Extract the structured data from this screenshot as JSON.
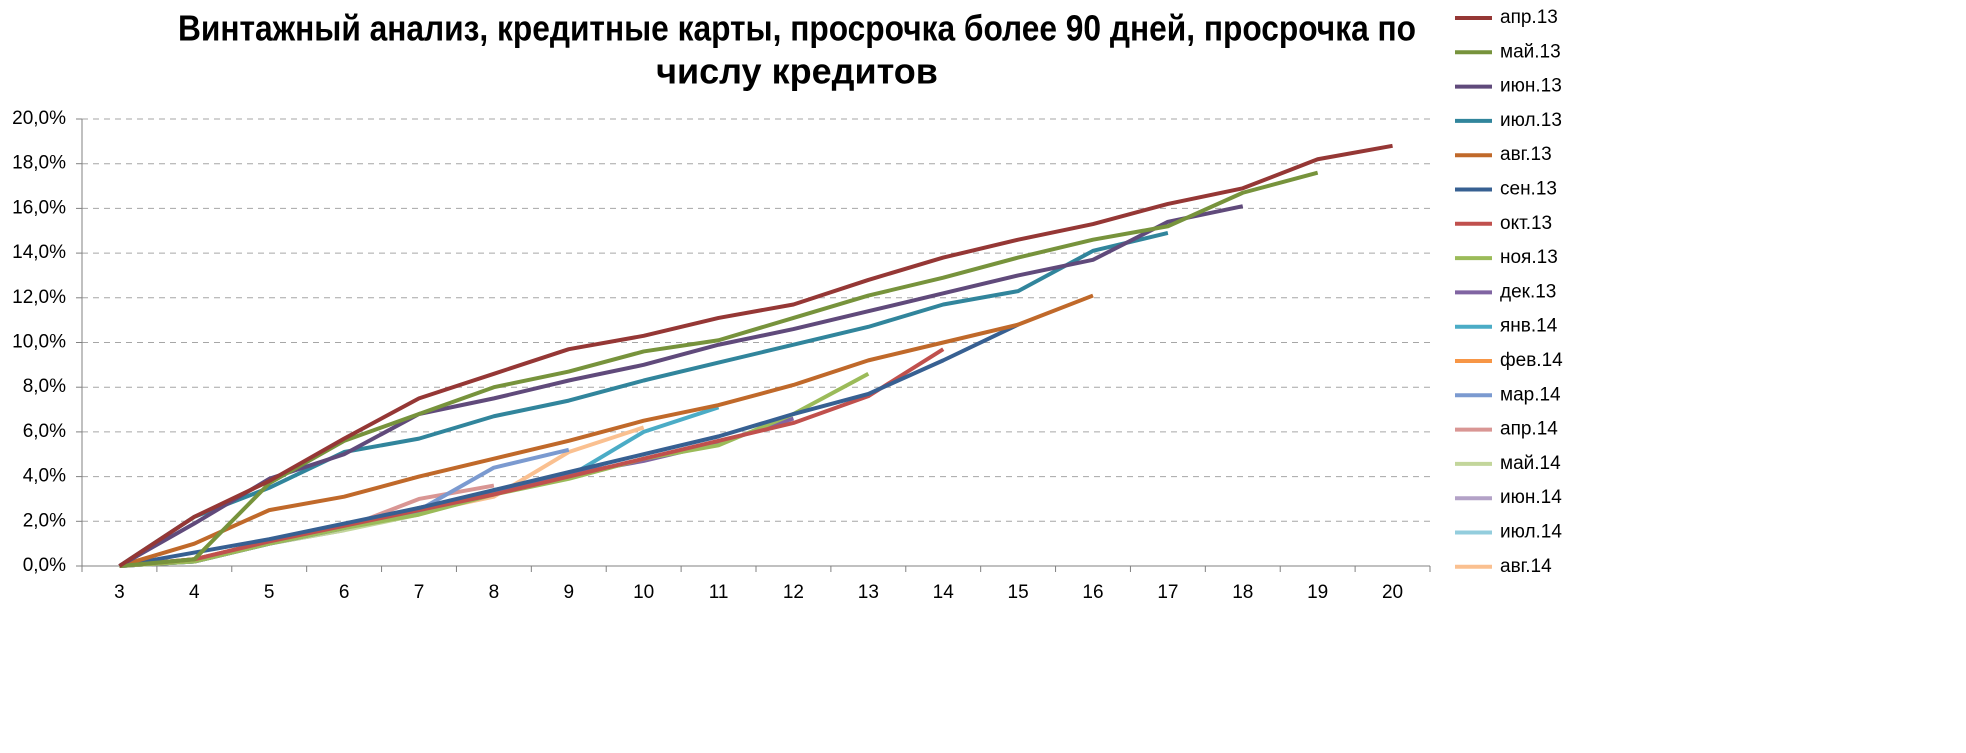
{
  "chart_data": {
    "type": "line",
    "title": [
      "Винтажный анализ, кредитные карты, просрочка более 90 дней, просрочка по",
      "числу кредитов"
    ],
    "categories": [
      "3",
      "4",
      "5",
      "6",
      "7",
      "8",
      "9",
      "10",
      "11",
      "12",
      "13",
      "14",
      "15",
      "16",
      "17",
      "18",
      "19",
      "20"
    ],
    "ylim": [
      0,
      20
    ],
    "yticks": [
      {
        "value": 0,
        "label": "0,0%"
      },
      {
        "value": 2,
        "label": "2,0%"
      },
      {
        "value": 4,
        "label": "4,0%"
      },
      {
        "value": 6,
        "label": "6,0%"
      },
      {
        "value": 8,
        "label": "8,0%"
      },
      {
        "value": 10,
        "label": "10,0%"
      },
      {
        "value": 12,
        "label": "12,0%"
      },
      {
        "value": 14,
        "label": "14,0%"
      },
      {
        "value": 16,
        "label": "16,0%"
      },
      {
        "value": 18,
        "label": "18,0%"
      },
      {
        "value": 20,
        "label": "20,0%"
      }
    ],
    "grid": true,
    "legend": "right",
    "series": [
      {
        "name": "апр.13",
        "color": "#953735",
        "values": [
          0,
          2.2,
          3.8,
          5.7,
          7.5,
          8.6,
          9.7,
          10.3,
          11.1,
          11.7,
          12.8,
          13.8,
          14.6,
          15.3,
          16.2,
          16.9,
          18.2,
          18.8
        ]
      },
      {
        "name": "май.13",
        "color": "#77933c",
        "values": [
          0,
          0.3,
          3.7,
          5.6,
          6.8,
          8.0,
          8.7,
          9.6,
          10.1,
          11.1,
          12.1,
          12.9,
          13.8,
          14.6,
          15.2,
          16.7,
          17.6,
          null
        ]
      },
      {
        "name": "июн.13",
        "color": "#604a7b",
        "values": [
          0,
          1.9,
          3.9,
          5.0,
          6.8,
          7.5,
          8.3,
          9.0,
          9.9,
          10.6,
          11.4,
          12.2,
          13.0,
          13.7,
          15.4,
          16.1,
          null,
          null
        ]
      },
      {
        "name": "июл.13",
        "color": "#31859c",
        "values": [
          0,
          2.2,
          3.5,
          5.1,
          5.7,
          6.7,
          7.4,
          8.3,
          9.1,
          9.9,
          10.7,
          11.7,
          12.3,
          14.1,
          14.9,
          null,
          null,
          null
        ]
      },
      {
        "name": "авг.13",
        "color": "#c0692a",
        "values": [
          0,
          1.0,
          2.5,
          3.1,
          4.0,
          4.8,
          5.6,
          6.5,
          7.2,
          8.1,
          9.2,
          10.0,
          10.8,
          12.1,
          null,
          null,
          null,
          null
        ]
      },
      {
        "name": "сен.13",
        "color": "#376092",
        "values": [
          0,
          0.6,
          1.2,
          1.9,
          2.6,
          3.4,
          4.2,
          5.0,
          5.8,
          6.8,
          7.7,
          9.2,
          10.8,
          null,
          null,
          null,
          null,
          null
        ]
      },
      {
        "name": "окт.13",
        "color": "#c0504d",
        "values": [
          0,
          0.3,
          1.1,
          1.8,
          2.5,
          3.2,
          4.0,
          4.8,
          5.6,
          6.4,
          7.6,
          9.7,
          null,
          null,
          null,
          null,
          null,
          null
        ]
      },
      {
        "name": "ноя.13",
        "color": "#9bbb59",
        "values": [
          0,
          0.2,
          1.0,
          1.7,
          2.3,
          3.2,
          3.9,
          4.8,
          5.4,
          6.8,
          8.6,
          null,
          null,
          null,
          null,
          null,
          null,
          null
        ]
      },
      {
        "name": "дек.13",
        "color": "#8064a2",
        "values": [
          0,
          0.2,
          1.0,
          1.7,
          2.6,
          3.3,
          4.1,
          4.7,
          5.5,
          6.6,
          null,
          null,
          null,
          null,
          null,
          null,
          null,
          null
        ]
      },
      {
        "name": "янв.14",
        "color": "#4bacc6",
        "values": [
          0,
          0.2,
          1.0,
          1.7,
          2.4,
          3.4,
          4.0,
          6.0,
          7.1,
          null,
          null,
          null,
          null,
          null,
          null,
          null,
          null,
          null
        ]
      },
      {
        "name": "фев.14",
        "color": "#f79646",
        "values": [
          0,
          0.3,
          1.1,
          1.8,
          2.5,
          3.2,
          null,
          null,
          null,
          null,
          null,
          null,
          null,
          null,
          null,
          null,
          null,
          null
        ]
      },
      {
        "name": "мар.14",
        "color": "#7b9ad0",
        "values": [
          0,
          0.2,
          1.1,
          1.8,
          2.5,
          4.4,
          5.2,
          null,
          null,
          null,
          null,
          null,
          null,
          null,
          null,
          null,
          null,
          null
        ]
      },
      {
        "name": "апр.14",
        "color": "#d99694",
        "values": [
          0,
          0.3,
          1.1,
          1.7,
          3.0,
          3.6,
          null,
          null,
          null,
          null,
          null,
          null,
          null,
          null,
          null,
          null,
          null,
          null
        ]
      },
      {
        "name": "май.14",
        "color": "#c3d69b",
        "values": [
          0,
          0.2,
          1.0,
          1.6,
          2.3,
          null,
          null,
          null,
          null,
          null,
          null,
          null,
          null,
          null,
          null,
          null,
          null,
          null
        ]
      },
      {
        "name": "июн.14",
        "color": "#b3a2c7",
        "values": [
          0,
          0.2,
          1.0,
          1.6,
          null,
          null,
          null,
          null,
          null,
          null,
          null,
          null,
          null,
          null,
          null,
          null,
          null,
          null
        ]
      },
      {
        "name": "июл.14",
        "color": "#93cddd",
        "values": [
          0,
          0.2,
          1.0,
          null,
          null,
          null,
          null,
          null,
          null,
          null,
          null,
          null,
          null,
          null,
          null,
          null,
          null,
          null
        ]
      },
      {
        "name": "авг.14",
        "color": "#fac090",
        "values": [
          0,
          0.3,
          1.1,
          1.8,
          2.4,
          3.1,
          5.1,
          6.2,
          null,
          null,
          null,
          null,
          null,
          null,
          null,
          null,
          null,
          null
        ]
      }
    ]
  }
}
